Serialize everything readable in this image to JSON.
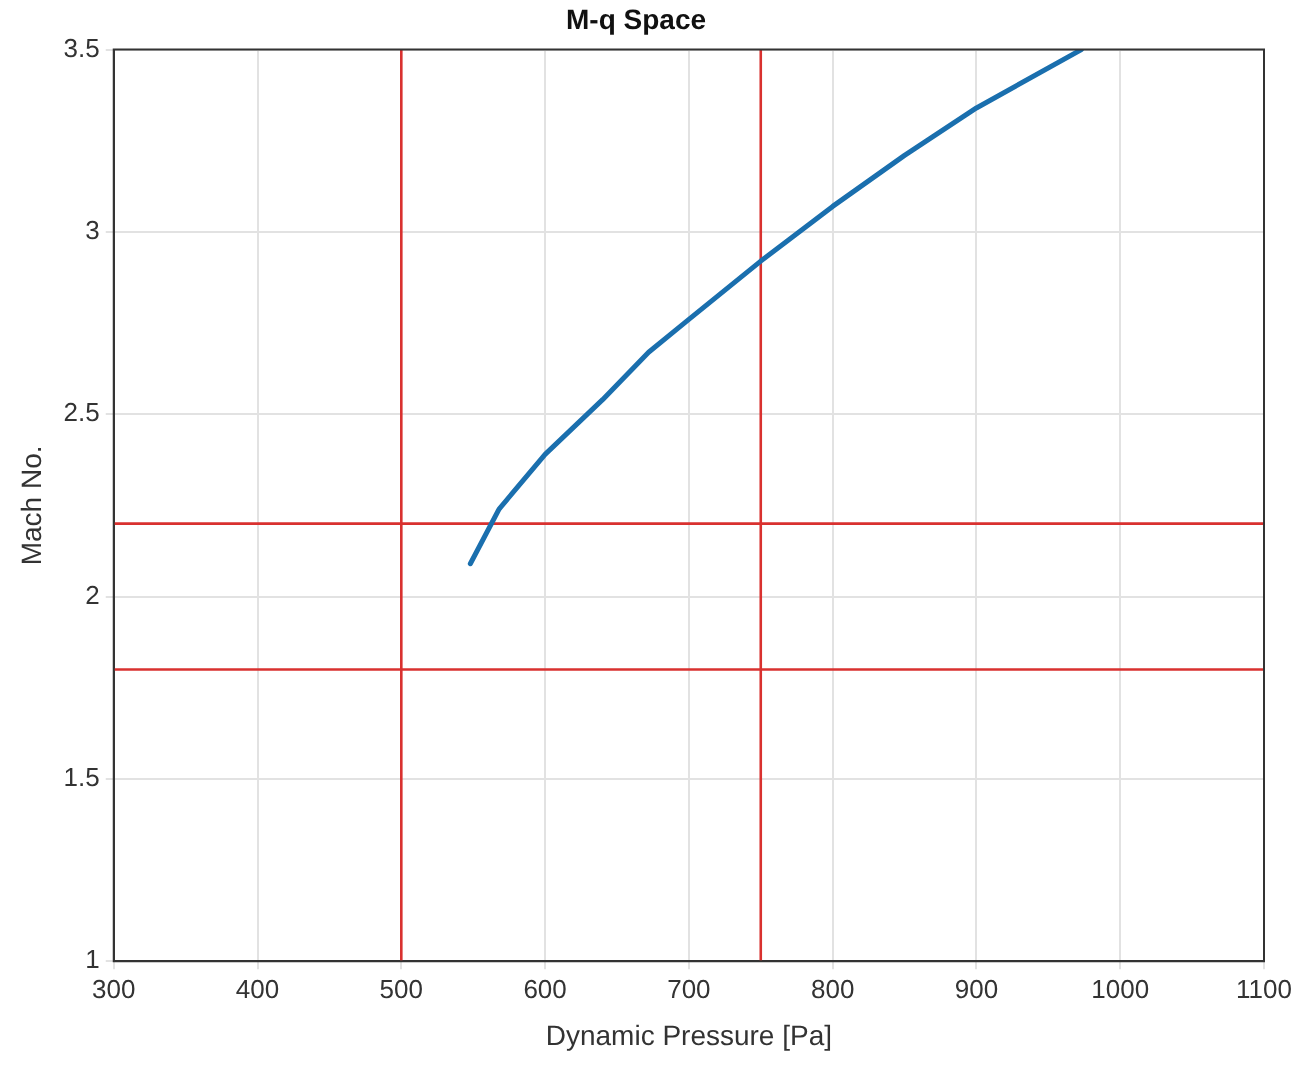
{
  "chart_data": {
    "type": "line",
    "title": "M-q Space",
    "xlabel": "Dynamic Pressure [Pa]",
    "ylabel": "Mach No.",
    "x": [
      548,
      568,
      600,
      640,
      672,
      700,
      750,
      800,
      850,
      900,
      973
    ],
    "series": [
      {
        "color": "#1a6fae",
        "values": [
          2.09,
          2.24,
          2.39,
          2.54,
          2.67,
          2.76,
          2.92,
          3.07,
          3.21,
          3.34,
          3.5
        ]
      }
    ],
    "xlim": [
      300,
      1100
    ],
    "xticks": [
      300,
      400,
      500,
      600,
      700,
      800,
      900,
      1000,
      1100
    ],
    "ylim": [
      1,
      3.5
    ],
    "yticks": [
      1,
      1.5,
      2,
      2.5,
      3,
      3.5
    ],
    "ref_lines": [
      {
        "axis": "x",
        "value": 500,
        "color": "#d9312f"
      },
      {
        "axis": "x",
        "value": 750,
        "color": "#d9312f"
      },
      {
        "axis": "y",
        "value": 2.2,
        "color": "#d9312f"
      },
      {
        "axis": "y",
        "value": 1.8,
        "color": "#d9312f"
      }
    ],
    "grid": true,
    "legend": false,
    "marker": "none",
    "line_style": "solid"
  }
}
